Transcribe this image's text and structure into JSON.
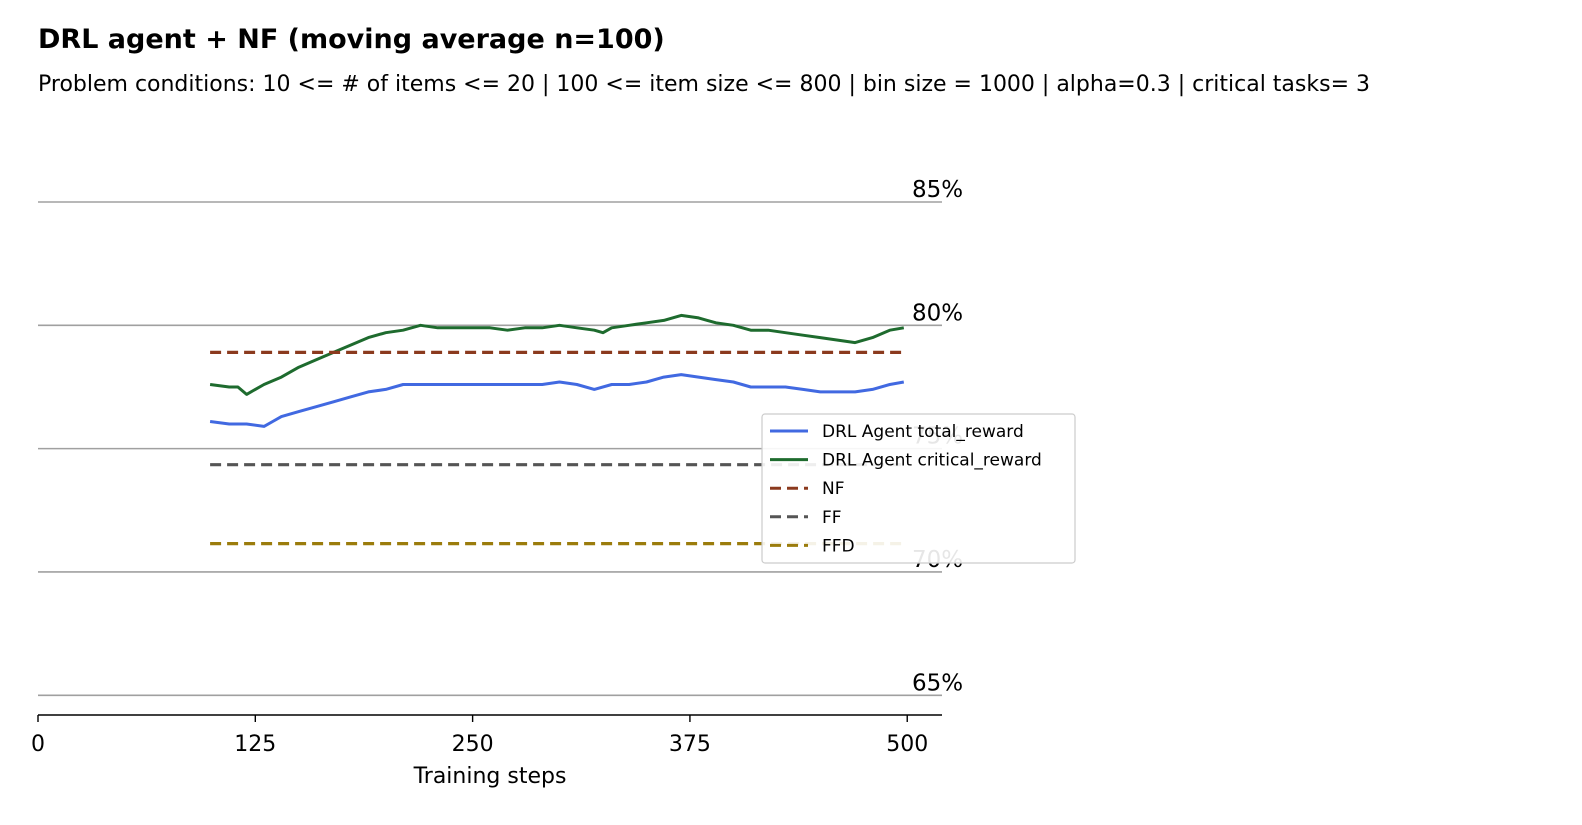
{
  "chart_data": {
    "type": "line",
    "title": "DRL agent + NF (moving average n=100)",
    "subtitle": "Problem conditions: 10 <= # of items <= 20 | 100 <= item size <= 800 | bin size = 1000 | alpha=0.3 | critical tasks= 3",
    "xlabel": "Training steps",
    "ylabel": "",
    "xlim": [
      0,
      520
    ],
    "ylim": [
      64.2,
      86.5
    ],
    "x_ticks": [
      0,
      125,
      250,
      375,
      500
    ],
    "y_grid": [
      65,
      70,
      75,
      80,
      85
    ],
    "y_grid_labels": [
      "65%",
      "70%",
      "75%",
      "80%",
      "85%"
    ],
    "grid": "horizontal",
    "legend": "right",
    "series": [
      {
        "name": "DRL Agent total_reward",
        "style": "solid",
        "color": "#4169e1",
        "x": [
          99,
          110,
          120,
          130,
          135,
          140,
          150,
          160,
          170,
          180,
          190,
          200,
          210,
          220,
          230,
          240,
          250,
          260,
          270,
          280,
          290,
          300,
          310,
          320,
          330,
          340,
          350,
          360,
          370,
          380,
          390,
          400,
          410,
          420,
          430,
          440,
          450,
          460,
          470,
          480,
          490,
          498
        ],
        "y": [
          76.1,
          76.0,
          76.0,
          75.9,
          76.1,
          76.3,
          76.5,
          76.7,
          76.9,
          77.1,
          77.3,
          77.4,
          77.6,
          77.6,
          77.6,
          77.6,
          77.6,
          77.6,
          77.6,
          77.6,
          77.6,
          77.7,
          77.6,
          77.4,
          77.6,
          77.6,
          77.7,
          77.9,
          78.0,
          77.9,
          77.8,
          77.7,
          77.5,
          77.5,
          77.5,
          77.4,
          77.3,
          77.3,
          77.3,
          77.4,
          77.6,
          77.7
        ]
      },
      {
        "name": "DRL Agent critical_reward",
        "style": "solid",
        "color": "#1e6b2e",
        "x": [
          99,
          110,
          115,
          120,
          125,
          130,
          140,
          150,
          160,
          170,
          180,
          190,
          200,
          210,
          220,
          230,
          240,
          250,
          260,
          270,
          280,
          290,
          300,
          310,
          320,
          325,
          330,
          340,
          350,
          360,
          370,
          380,
          385,
          390,
          400,
          410,
          420,
          430,
          440,
          450,
          460,
          470,
          480,
          490,
          498
        ],
        "y": [
          77.6,
          77.5,
          77.5,
          77.2,
          77.4,
          77.6,
          77.9,
          78.3,
          78.6,
          78.9,
          79.2,
          79.5,
          79.7,
          79.8,
          80.0,
          79.9,
          79.9,
          79.9,
          79.9,
          79.8,
          79.9,
          79.9,
          80.0,
          79.9,
          79.8,
          79.7,
          79.9,
          80.0,
          80.1,
          80.2,
          80.4,
          80.3,
          80.2,
          80.1,
          80.0,
          79.8,
          79.8,
          79.7,
          79.6,
          79.5,
          79.4,
          79.3,
          79.5,
          79.8,
          79.9
        ]
      },
      {
        "name": "NF",
        "style": "dashed",
        "color": "#8b3a1e",
        "x": [
          99,
          498
        ],
        "y": [
          78.9,
          78.9
        ]
      },
      {
        "name": "FF",
        "style": "dashed",
        "color": "#555555",
        "x": [
          99,
          498
        ],
        "y": [
          74.35,
          74.35
        ]
      },
      {
        "name": "FFD",
        "style": "dashed",
        "color": "#9b7c0c",
        "x": [
          99,
          498
        ],
        "y": [
          71.15,
          71.15
        ]
      }
    ]
  }
}
